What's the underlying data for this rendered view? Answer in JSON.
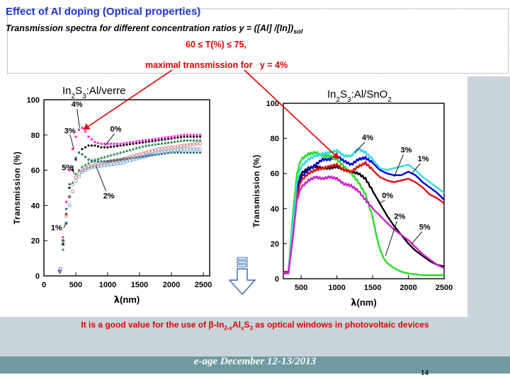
{
  "header": {
    "title": "Effect of Al doping (Optical properties)",
    "subtitle_main": "Transmission spectra for different concentration ratios y = ([Al] /[In])",
    "subtitle_sub": "sol",
    "range_text": "60 ≤ T(%) ≤ 75,",
    "max_prefix": "maximal transmission for",
    "max_suffix": "y = 4%"
  },
  "note": {
    "pre": "It is a good value for the use of β-In",
    "sub1": "2-x",
    "mid1": "Al",
    "sub2": "x",
    "mid2": "S",
    "sub3": "3",
    "post": " as optical windows in photovoltaic devices"
  },
  "footer": {
    "text": "e-age December 12-13/2013",
    "page": "14"
  },
  "colors": {
    "accent_title": "#2233cc",
    "highlight_red": "#e00000",
    "band": "#c9d4da",
    "footer_band": "#6f9aa0"
  },
  "icons": {
    "down_arrow": "hollow-down-arrow-icon"
  },
  "chart_data": [
    {
      "type": "scatter",
      "title_parts": {
        "a": "In",
        "b": "2",
        "c": "S",
        "d": "3",
        "e": ":Al/verre"
      },
      "xlabel_sym": "λ",
      "xlabel_rest": "(nm)",
      "ylabel": "Transmission (%)",
      "xlim": [
        0,
        2600
      ],
      "ylim": [
        0,
        100
      ],
      "xticks": [
        0,
        500,
        1000,
        1500,
        2000,
        2500
      ],
      "yticks": [
        0,
        20,
        40,
        60,
        80,
        100
      ],
      "series": [
        {
          "label": "0%",
          "color": "#111111",
          "x": [
            240,
            300,
            350,
            400,
            450,
            500,
            550,
            600,
            700,
            800,
            900,
            1000,
            1200,
            1400,
            1600,
            1800,
            2000,
            2200,
            2400,
            2450
          ],
          "y": [
            3,
            18,
            35,
            50,
            60,
            66,
            70,
            72,
            74,
            74,
            73,
            73,
            74,
            75,
            76,
            77,
            78,
            79,
            79,
            79
          ]
        },
        {
          "label": "1%",
          "color": "#2e8b57",
          "x": [
            250,
            300,
            350,
            400,
            450,
            500,
            600,
            700,
            800,
            1000,
            1200,
            1400,
            1600,
            1800,
            2000,
            2200,
            2400,
            2450
          ],
          "y": [
            2,
            15,
            30,
            45,
            53,
            58,
            62,
            64,
            66,
            68,
            70,
            72,
            74,
            75,
            76,
            77,
            77,
            77
          ]
        },
        {
          "label": "2%",
          "color": "#cc5555",
          "x": [
            260,
            300,
            350,
            400,
            450,
            500,
            600,
            700,
            800,
            1000,
            1200,
            1400,
            1600,
            1800,
            2000,
            2200,
            2400,
            2450
          ],
          "y": [
            4,
            20,
            34,
            45,
            52,
            56,
            60,
            62,
            63,
            65,
            66,
            68,
            70,
            72,
            73,
            74,
            75,
            75
          ]
        },
        {
          "label": "3%",
          "color": "#2f6f7f",
          "x": [
            260,
            300,
            350,
            400,
            450,
            500,
            550,
            600,
            700,
            800,
            1000,
            1200,
            1400,
            1600,
            1800,
            2000,
            2200,
            2400,
            2450
          ],
          "y": [
            3,
            20,
            38,
            52,
            62,
            67,
            70,
            69,
            66,
            65,
            65,
            66,
            67,
            68,
            69,
            70,
            70,
            70,
            70
          ]
        },
        {
          "label": "4%",
          "color": "#ff22dd",
          "x": [
            250,
            300,
            350,
            400,
            450,
            500,
            550,
            600,
            650,
            700,
            800,
            900,
            1000,
            1200,
            1400,
            1600,
            1800,
            2000,
            2200,
            2400,
            2450
          ],
          "y": [
            3,
            22,
            42,
            60,
            72,
            79,
            83,
            84,
            82,
            79,
            76,
            75,
            75,
            75,
            76,
            77,
            78,
            79,
            80,
            80,
            80
          ]
        },
        {
          "label": "5%",
          "color": "#6699cc",
          "x": [
            260,
            300,
            350,
            400,
            450,
            500,
            600,
            700,
            800,
            1000,
            1200,
            1400,
            1600,
            1800,
            2000,
            2200,
            2400,
            2450
          ],
          "y": [
            4,
            18,
            30,
            40,
            48,
            54,
            59,
            61,
            62,
            63,
            64,
            66,
            68,
            70,
            71,
            72,
            72,
            72
          ]
        }
      ]
    },
    {
      "type": "line",
      "title_parts": {
        "a": "In",
        "b": "2",
        "c": "S",
        "d": "3",
        "e": ":Al/SnO",
        "f": "2"
      },
      "xlabel_sym": "λ",
      "xlabel_rest": "(nm)",
      "ylabel": "Transmission (%)",
      "xlim": [
        250,
        2500
      ],
      "ylim": [
        0,
        100
      ],
      "xticks": [
        500,
        1000,
        1500,
        2000,
        2500
      ],
      "yticks": [
        0,
        20,
        40,
        60,
        80,
        100
      ],
      "series": [
        {
          "label": "0%",
          "color": "#000000",
          "x": [
            250,
            320,
            380,
            440,
            500,
            600,
            700,
            800,
            900,
            1000,
            1100,
            1200,
            1300,
            1400,
            1500,
            1600,
            1700,
            1800,
            1900,
            2000,
            2100,
            2200,
            2300,
            2400,
            2500
          ],
          "y": [
            3,
            3,
            28,
            52,
            60,
            63,
            64,
            63,
            63,
            64,
            62,
            61,
            60,
            57,
            50,
            43,
            36,
            30,
            25,
            20,
            16,
            13,
            10,
            8,
            7
          ]
        },
        {
          "label": "1%",
          "color": "#0000dd",
          "x": [
            250,
            320,
            380,
            440,
            500,
            600,
            700,
            800,
            900,
            1000,
            1100,
            1200,
            1300,
            1400,
            1500,
            1600,
            1700,
            1800,
            1900,
            2000,
            2100,
            2200,
            2300,
            2400,
            2500
          ],
          "y": [
            3,
            3,
            28,
            50,
            58,
            62,
            65,
            68,
            68,
            70,
            67,
            65,
            68,
            69,
            66,
            62,
            60,
            59,
            59,
            61,
            59,
            55,
            52,
            49,
            45
          ]
        },
        {
          "label": "2%",
          "color": "#22dd22",
          "x": [
            250,
            320,
            380,
            440,
            500,
            600,
            700,
            800,
            900,
            1000,
            1100,
            1200,
            1300,
            1400,
            1500,
            1550,
            1600,
            1650,
            1700,
            1800,
            1900,
            2000,
            2200,
            2400,
            2500
          ],
          "y": [
            3,
            3,
            35,
            60,
            68,
            71,
            72,
            70,
            70,
            68,
            64,
            60,
            55,
            48,
            35,
            25,
            17,
            12,
            9,
            6,
            4,
            3,
            2,
            2,
            2
          ]
        },
        {
          "label": "3%",
          "color": "#dd1111",
          "x": [
            250,
            320,
            380,
            440,
            500,
            600,
            700,
            800,
            900,
            1000,
            1100,
            1200,
            1300,
            1400,
            1500,
            1600,
            1700,
            1800,
            1900,
            2000,
            2100,
            2200,
            2300,
            2400,
            2500
          ],
          "y": [
            4,
            4,
            25,
            48,
            56,
            60,
            62,
            63,
            64,
            65,
            62,
            61,
            64,
            66,
            62,
            58,
            56,
            55,
            56,
            57,
            55,
            52,
            48,
            46,
            43
          ]
        },
        {
          "label": "4%",
          "color": "#33dddd",
          "x": [
            250,
            320,
            380,
            440,
            500,
            600,
            700,
            800,
            900,
            1000,
            1100,
            1200,
            1300,
            1400,
            1500,
            1600,
            1700,
            1800,
            1900,
            2000,
            2100,
            2200,
            2300,
            2400,
            2500
          ],
          "y": [
            3,
            3,
            30,
            55,
            64,
            68,
            70,
            71,
            72,
            73,
            70,
            70,
            74,
            72,
            68,
            63,
            62,
            63,
            64,
            65,
            62,
            58,
            55,
            52,
            49
          ]
        },
        {
          "label": "5%",
          "color": "#cc22cc",
          "x": [
            250,
            320,
            380,
            440,
            500,
            600,
            700,
            800,
            900,
            1000,
            1100,
            1200,
            1300,
            1400,
            1500,
            1600,
            1700,
            1800,
            1900,
            2000,
            2100,
            2200,
            2300,
            2400,
            2500
          ],
          "y": [
            3,
            3,
            22,
            45,
            52,
            56,
            58,
            57,
            58,
            57,
            54,
            53,
            50,
            45,
            40,
            36,
            32,
            28,
            25,
            22,
            18,
            14,
            11,
            8,
            6
          ]
        }
      ]
    }
  ]
}
